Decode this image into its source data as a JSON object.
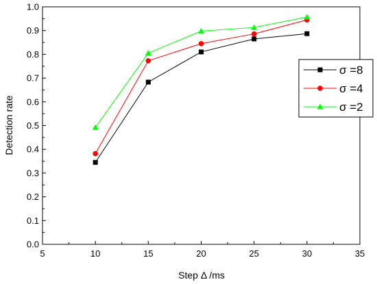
{
  "chart_data": {
    "type": "line",
    "title": "",
    "xlabel": "Step Δ /ms",
    "ylabel": "Detection rate",
    "xlim": [
      5,
      35
    ],
    "ylim": [
      0.0,
      1.0
    ],
    "x_ticks": [
      "5",
      "10",
      "15",
      "20",
      "25",
      "30",
      "35"
    ],
    "y_ticks": [
      "0.0",
      "0.1",
      "0.2",
      "0.3",
      "0.4",
      "0.5",
      "0.6",
      "0.7",
      "0.8",
      "0.9",
      "1.0"
    ],
    "grid": false,
    "legend_position": "right",
    "x": [
      10,
      15,
      20,
      25,
      30
    ],
    "series": [
      {
        "name": "σ =8",
        "marker": "square",
        "color": "#000000",
        "values": [
          0.345,
          0.683,
          0.81,
          0.865,
          0.887
        ]
      },
      {
        "name": "σ =4",
        "marker": "circle",
        "color": "#ff0000",
        "values": [
          0.382,
          0.773,
          0.845,
          0.886,
          0.945
        ]
      },
      {
        "name": "σ =2",
        "marker": "triangle",
        "color": "#00ff00",
        "values": [
          0.492,
          0.805,
          0.898,
          0.913,
          0.957
        ]
      }
    ]
  }
}
